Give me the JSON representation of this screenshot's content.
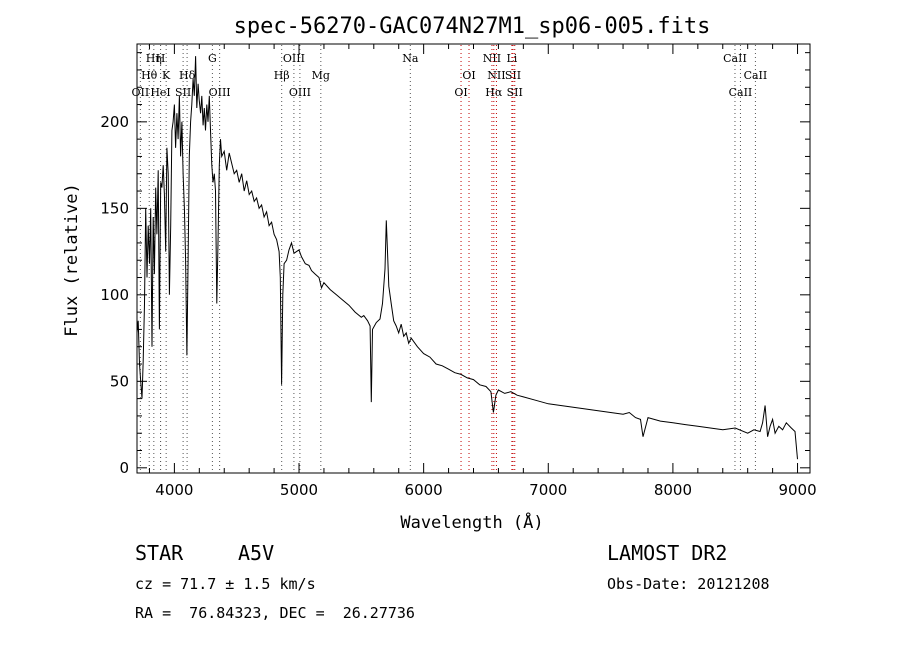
{
  "chart_data": {
    "type": "line",
    "title": "spec-56270-GAC074N27M1_sp06-005.fits",
    "xlabel": "Wavelength (Å)",
    "ylabel": "Flux (relative)",
    "xlim": [
      3700,
      9100
    ],
    "ylim": [
      -3,
      245
    ],
    "xticks": [
      4000,
      5000,
      6000,
      7000,
      8000,
      9000
    ],
    "yticks": [
      0,
      50,
      100,
      150,
      200
    ],
    "series": [
      {
        "values": [
          [
            3700,
            78
          ],
          [
            3710,
            85
          ],
          [
            3720,
            60
          ],
          [
            3730,
            50
          ],
          [
            3740,
            40
          ],
          [
            3750,
            62
          ],
          [
            3760,
            95
          ],
          [
            3770,
            150
          ],
          [
            3780,
            110
          ],
          [
            3790,
            140
          ],
          [
            3800,
            118
          ],
          [
            3810,
            150
          ],
          [
            3820,
            70
          ],
          [
            3830,
            145
          ],
          [
            3840,
            112
          ],
          [
            3850,
            162
          ],
          [
            3860,
            135
          ],
          [
            3870,
            172
          ],
          [
            3880,
            80
          ],
          [
            3890,
            165
          ],
          [
            3900,
            162
          ],
          [
            3910,
            175
          ],
          [
            3920,
            158
          ],
          [
            3930,
            125
          ],
          [
            3940,
            185
          ],
          [
            3950,
            170
          ],
          [
            3960,
            100
          ],
          [
            3970,
            140
          ],
          [
            3980,
            195
          ],
          [
            3990,
            200
          ],
          [
            4000,
            210
          ],
          [
            4010,
            185
          ],
          [
            4020,
            205
          ],
          [
            4030,
            190
          ],
          [
            4040,
            215
          ],
          [
            4050,
            180
          ],
          [
            4060,
            200
          ],
          [
            4070,
            170
          ],
          [
            4080,
            150
          ],
          [
            4090,
            120
          ],
          [
            4100,
            65
          ],
          [
            4110,
            120
          ],
          [
            4120,
            180
          ],
          [
            4130,
            200
          ],
          [
            4140,
            210
          ],
          [
            4150,
            225
          ],
          [
            4160,
            215
          ],
          [
            4170,
            238
          ],
          [
            4180,
            208
          ],
          [
            4190,
            222
          ],
          [
            4200,
            212
          ],
          [
            4210,
            205
          ],
          [
            4220,
            215
          ],
          [
            4230,
            198
          ],
          [
            4240,
            208
          ],
          [
            4250,
            195
          ],
          [
            4260,
            210
          ],
          [
            4270,
            200
          ],
          [
            4280,
            215
          ],
          [
            4290,
            195
          ],
          [
            4300,
            175
          ],
          [
            4310,
            165
          ],
          [
            4320,
            170
          ],
          [
            4330,
            160
          ],
          [
            4340,
            95
          ],
          [
            4350,
            130
          ],
          [
            4360,
            175
          ],
          [
            4370,
            190
          ],
          [
            4380,
            180
          ],
          [
            4400,
            183
          ],
          [
            4420,
            172
          ],
          [
            4440,
            182
          ],
          [
            4460,
            176
          ],
          [
            4480,
            170
          ],
          [
            4500,
            172
          ],
          [
            4520,
            165
          ],
          [
            4540,
            170
          ],
          [
            4560,
            160
          ],
          [
            4580,
            166
          ],
          [
            4600,
            158
          ],
          [
            4620,
            160
          ],
          [
            4640,
            154
          ],
          [
            4660,
            156
          ],
          [
            4680,
            150
          ],
          [
            4700,
            152
          ],
          [
            4720,
            145
          ],
          [
            4740,
            148
          ],
          [
            4760,
            140
          ],
          [
            4780,
            142
          ],
          [
            4800,
            135
          ],
          [
            4820,
            132
          ],
          [
            4840,
            125
          ],
          [
            4850,
            110
          ],
          [
            4860,
            48
          ],
          [
            4870,
            100
          ],
          [
            4880,
            118
          ],
          [
            4900,
            120
          ],
          [
            4920,
            126
          ],
          [
            4940,
            130
          ],
          [
            4960,
            124
          ],
          [
            4980,
            125
          ],
          [
            5000,
            126
          ],
          [
            5020,
            122
          ],
          [
            5050,
            118
          ],
          [
            5080,
            117
          ],
          [
            5100,
            114
          ],
          [
            5130,
            112
          ],
          [
            5160,
            110
          ],
          [
            5180,
            104
          ],
          [
            5200,
            107
          ],
          [
            5250,
            103
          ],
          [
            5300,
            100
          ],
          [
            5350,
            97
          ],
          [
            5400,
            94
          ],
          [
            5450,
            90
          ],
          [
            5500,
            87
          ],
          [
            5520,
            88
          ],
          [
            5550,
            85
          ],
          [
            5570,
            82
          ],
          [
            5580,
            38
          ],
          [
            5590,
            80
          ],
          [
            5620,
            84
          ],
          [
            5650,
            86
          ],
          [
            5670,
            95
          ],
          [
            5690,
            115
          ],
          [
            5700,
            143
          ],
          [
            5710,
            125
          ],
          [
            5720,
            105
          ],
          [
            5740,
            95
          ],
          [
            5760,
            85
          ],
          [
            5780,
            82
          ],
          [
            5800,
            78
          ],
          [
            5820,
            83
          ],
          [
            5840,
            76
          ],
          [
            5860,
            78
          ],
          [
            5880,
            72
          ],
          [
            5900,
            75
          ],
          [
            5950,
            70
          ],
          [
            6000,
            66
          ],
          [
            6050,
            64
          ],
          [
            6100,
            60
          ],
          [
            6150,
            59
          ],
          [
            6200,
            57
          ],
          [
            6250,
            55
          ],
          [
            6300,
            54
          ],
          [
            6350,
            52
          ],
          [
            6400,
            51
          ],
          [
            6450,
            48
          ],
          [
            6500,
            47
          ],
          [
            6540,
            44
          ],
          [
            6560,
            32
          ],
          [
            6580,
            42
          ],
          [
            6600,
            45
          ],
          [
            6650,
            43
          ],
          [
            6700,
            44
          ],
          [
            6750,
            42
          ],
          [
            6800,
            41
          ],
          [
            6900,
            39
          ],
          [
            7000,
            37
          ],
          [
            7100,
            36
          ],
          [
            7200,
            35
          ],
          [
            7300,
            34
          ],
          [
            7400,
            33
          ],
          [
            7500,
            32
          ],
          [
            7600,
            31
          ],
          [
            7650,
            32
          ],
          [
            7700,
            29
          ],
          [
            7740,
            28
          ],
          [
            7760,
            18
          ],
          [
            7800,
            29
          ],
          [
            7900,
            27
          ],
          [
            8000,
            26
          ],
          [
            8100,
            25
          ],
          [
            8200,
            24
          ],
          [
            8300,
            23
          ],
          [
            8400,
            22
          ],
          [
            8500,
            23
          ],
          [
            8600,
            20
          ],
          [
            8650,
            22
          ],
          [
            8700,
            21
          ],
          [
            8720,
            26
          ],
          [
            8740,
            36
          ],
          [
            8760,
            18
          ],
          [
            8780,
            24
          ],
          [
            8800,
            28
          ],
          [
            8820,
            20
          ],
          [
            8850,
            24
          ],
          [
            8880,
            22
          ],
          [
            8910,
            26
          ],
          [
            8950,
            23
          ],
          [
            8980,
            21
          ],
          [
            9000,
            5
          ]
        ]
      }
    ],
    "lines": [
      {
        "label": "Hη",
        "x": 3835,
        "row": 1
      },
      {
        "label": "H",
        "x": 3889,
        "row": 1
      },
      {
        "label": "Hθ",
        "x": 3798,
        "row": 2
      },
      {
        "label": "K",
        "x": 3934,
        "row": 2
      },
      {
        "label": "Hδ",
        "x": 4102,
        "row": 2
      },
      {
        "label": "OII",
        "x": 3727,
        "row": 3
      },
      {
        "label": "HeI",
        "x": 3889,
        "row": 3
      },
      {
        "label": "SII",
        "x": 4070,
        "row": 3
      },
      {
        "label": "G",
        "x": 4305,
        "row": 1
      },
      {
        "label": "OIII",
        "x": 4363,
        "row": 3
      },
      {
        "label": "OIII",
        "x": 4959,
        "row": 1
      },
      {
        "label": "Hβ",
        "x": 4861,
        "row": 2
      },
      {
        "label": "Mg",
        "x": 5175,
        "row": 2
      },
      {
        "label": "OIII",
        "x": 5007,
        "row": 3
      },
      {
        "label": "Na",
        "x": 5893,
        "row": 1
      },
      {
        "label": "OI",
        "x": 6364,
        "row": 2
      },
      {
        "label": "OI",
        "x": 6300,
        "row": 3
      },
      {
        "label": "NII",
        "x": 6548,
        "row": 1
      },
      {
        "label": "Li",
        "x": 6708,
        "row": 1
      },
      {
        "label": "NII",
        "x": 6584,
        "row": 2
      },
      {
        "label": "SII",
        "x": 6717,
        "row": 2
      },
      {
        "label": "Hα",
        "x": 6563,
        "row": 3
      },
      {
        "label": "SII",
        "x": 6731,
        "row": 3
      },
      {
        "label": "CaII",
        "x": 8498,
        "row": 1
      },
      {
        "label": "CaII",
        "x": 8662,
        "row": 2
      },
      {
        "label": "CaII",
        "x": 8542,
        "row": 3
      }
    ],
    "grid": false
  },
  "info": {
    "object_type": "STAR",
    "subclass": "A5V",
    "survey": "LAMOST DR2",
    "redshift": "cz = 71.7 ± 1.5 km/s",
    "obs_date": "Obs-Date: 20121208",
    "coords": "RA =  76.84323, DEC =  26.27736"
  }
}
